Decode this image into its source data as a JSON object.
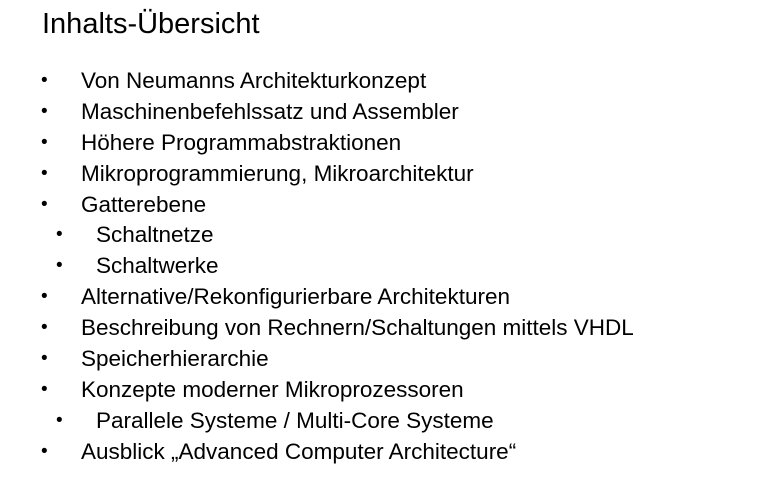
{
  "slide": {
    "title": "Inhalts-Übersicht",
    "bullet_char": "•",
    "items": [
      {
        "text": "Von Neumanns Architekturkonzept",
        "level": 1
      },
      {
        "text": "Maschinenbefehlssatz und Assembler",
        "level": 1
      },
      {
        "text": "Höhere Programmabstraktionen",
        "level": 1
      },
      {
        "text": "Mikroprogrammierung, Mikroarchitektur",
        "level": 1
      },
      {
        "text": "Gatterebene",
        "level": 1
      },
      {
        "text": "Schaltnetze",
        "level": 2
      },
      {
        "text": "Schaltwerke",
        "level": 2
      },
      {
        "text": "Alternative/Rekonfigurierbare Architekturen",
        "level": 1
      },
      {
        "text": "Beschreibung von Rechnern/Schaltungen mittels VHDL",
        "level": 1
      },
      {
        "text": "Speicherhierarchie",
        "level": 1
      },
      {
        "text": "Konzepte moderner Mikroprozessoren",
        "level": 1
      },
      {
        "text": "Parallele Systeme / Multi-Core Systeme",
        "level": 2
      },
      {
        "text": "Ausblick „Advanced Computer Architecture“",
        "level": 1
      }
    ]
  }
}
